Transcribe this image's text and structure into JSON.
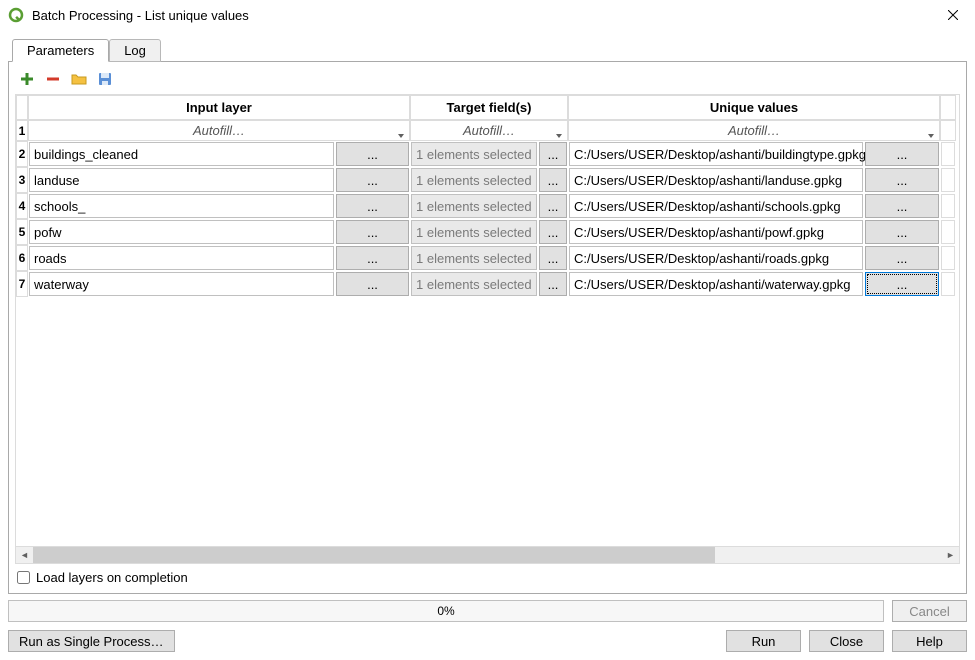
{
  "window": {
    "title": "Batch Processing - List unique values",
    "icon_name": "qgis-q-icon",
    "accent_color": "#5a9e33"
  },
  "tabs": {
    "items": [
      "Parameters",
      "Log"
    ],
    "active_index": 0
  },
  "toolbar": {
    "icons": [
      "add-icon",
      "remove-icon",
      "folder-icon",
      "save-icon"
    ]
  },
  "table": {
    "columns": [
      "Input layer",
      "Target field(s)",
      "Unique values"
    ],
    "autofill_label": "Autofill…",
    "browse_label": "...",
    "target_status_text": "1 elements selected",
    "row_start_number": 2,
    "rows": [
      {
        "input": "buildings_cleaned",
        "target": "1 elements selected",
        "output": "C:/Users/USER/Desktop/ashanti/buildingtype.gpkg"
      },
      {
        "input": "landuse",
        "target": "1 elements selected",
        "output": "C:/Users/USER/Desktop/ashanti/landuse.gpkg"
      },
      {
        "input": "schools_",
        "target": "1 elements selected",
        "output": "C:/Users/USER/Desktop/ashanti/schools.gpkg"
      },
      {
        "input": "pofw",
        "target": "1 elements selected",
        "output": "C:/Users/USER/Desktop/ashanti/powf.gpkg"
      },
      {
        "input": "roads",
        "target": "1 elements selected",
        "output": "C:/Users/USER/Desktop/ashanti/roads.gpkg"
      },
      {
        "input": "waterway",
        "target": "1 elements selected",
        "output": "C:/Users/USER/Desktop/ashanti/waterway.gpkg"
      }
    ],
    "focused_cell": {
      "row_index": 5,
      "column": "output_btn"
    }
  },
  "load_layers": {
    "label": "Load layers on completion",
    "checked": false
  },
  "progress": {
    "text": "0%",
    "value": 0
  },
  "buttons": {
    "cancel": "Cancel",
    "single": "Run as Single Process…",
    "run": "Run",
    "close": "Close",
    "help": "Help"
  },
  "colors": {
    "border_gray": "#a9a9a9",
    "cell_border": "#c0c0c0",
    "disabled_text": "#888888",
    "btn_bg": "#e1e1e1",
    "focus_blue": "#0078d7"
  }
}
